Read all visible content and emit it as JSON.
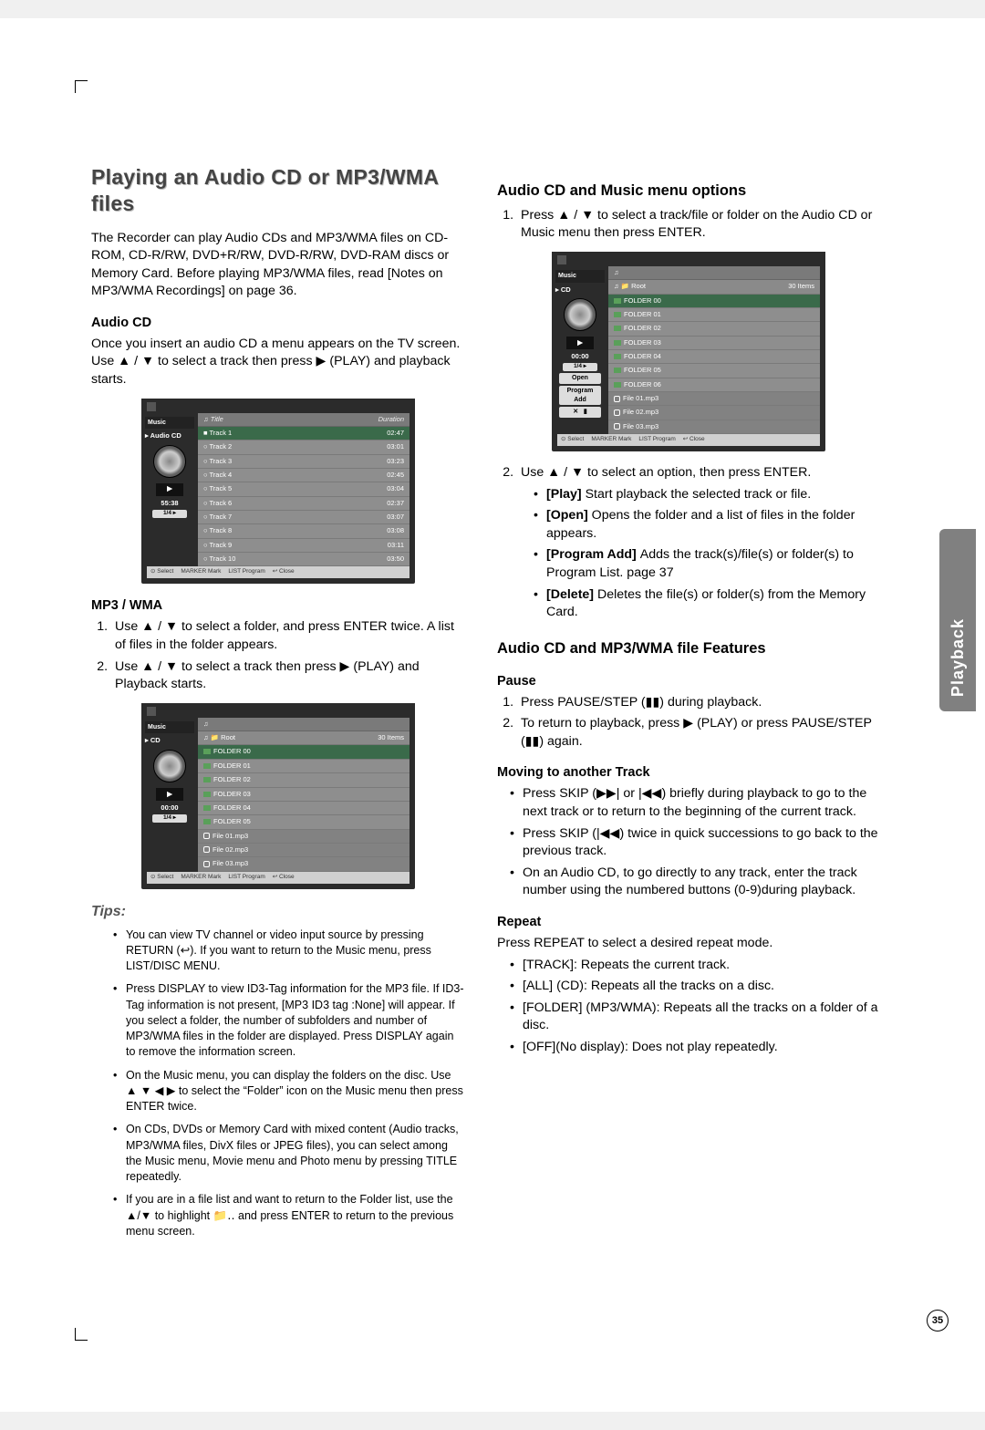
{
  "sideTab": "Playback",
  "pageNumber": "35",
  "left": {
    "h1": "Playing an Audio CD or MP3/WMA files",
    "intro": "The Recorder can play Audio CDs and MP3/WMA files on CD-ROM, CD-R/RW, DVD+R/RW, DVD-R/RW, DVD-RAM discs or Memory Card. Before playing MP3/WMA files, read [Notes on MP3/WMA Recordings] on page 36.",
    "audioCdHead": "Audio CD",
    "audioCdText": "Once you insert an audio CD a menu appears on the TV screen. Use ▲ / ▼ to select a track then press ▶ (PLAY) and playback starts.",
    "mp3Head": "MP3 / WMA",
    "mp3Steps": [
      "Use ▲ / ▼ to select a folder, and press ENTER twice. A list of files in the folder appears.",
      "Use ▲ / ▼ to select a track then press ▶ (PLAY) and Playback starts."
    ],
    "tipsHead": "Tips:",
    "tips": [
      "You can view TV channel or video input source by pressing RETURN (↩). If you want to return to the Music menu, press LIST/DISC MENU.",
      "Press DISPLAY to view ID3-Tag information for the MP3 file. If ID3-Tag information is not present, [MP3 ID3 tag :None] will appear. If you select a folder, the number of subfolders and number of MP3/WMA files in the folder are displayed. Press DISPLAY again to remove the information screen.",
      "On the Music menu, you can display the folders on the disc. Use ▲ ▼ ◀ ▶ to select the “Folder” icon on the Music menu then press ENTER twice.",
      "On CDs, DVDs or Memory Card with mixed content (Audio tracks, MP3/WMA files, DivX files or JPEG files), you can select among the Music menu, Movie menu and Photo menu by pressing TITLE repeatedly.",
      "If you are in a file list and want to return to the Folder list, use the ▲/▼ to highlight 📁‥ and press ENTER to return to the previous menu screen."
    ]
  },
  "right": {
    "h2a": "Audio CD and Music menu options",
    "step1": "Press ▲ / ▼ to select a track/file or folder on the Audio CD or Music menu then press ENTER.",
    "step2": "Use ▲ / ▼ to select an option, then press ENTER.",
    "opts": {
      "play": "Start playback the selected track or file.",
      "open": "Opens the folder and a list of files in the folder appears.",
      "prog": "Adds the track(s)/file(s) or folder(s) to Program List. page 37",
      "del": "Deletes the file(s) or folder(s) from the Memory Card."
    },
    "h2b": "Audio CD and MP3/WMA file Features",
    "pauseHead": "Pause",
    "pause": [
      "Press PAUSE/STEP (▮▮) during playback.",
      "To return to playback, press ▶ (PLAY) or press PAUSE/STEP (▮▮) again."
    ],
    "moveHead": "Moving to another Track",
    "move": [
      "Press SKIP (▶▶| or |◀◀) briefly during playback to go to the next track or to return to the beginning of the current track.",
      "Press SKIP (|◀◀) twice in quick successions to go back to the previous track.",
      "On an Audio CD, to go directly to any track, enter the track number using the numbered buttons (0-9)during playback."
    ],
    "repeatHead": "Repeat",
    "repeatIntro": "Press REPEAT to select a desired repeat mode.",
    "repeat": [
      "[TRACK]: Repeats the current track.",
      "[ALL] (CD): Repeats all the tracks on a disc.",
      "[FOLDER] (MP3/WMA): Repeats all the tracks on a folder of a disc.",
      "[OFF](No display): Does not play repeatedly."
    ]
  },
  "shot1": {
    "title": "Music",
    "sideLabel": "▸ Audio CD",
    "time": "55:38",
    "badge": "1/4 ▸",
    "listHead": [
      "Title",
      "Duration"
    ],
    "rows": [
      [
        "Track 1",
        "02:47"
      ],
      [
        "Track 2",
        "03:01"
      ],
      [
        "Track 3",
        "03:23"
      ],
      [
        "Track 4",
        "02:45"
      ],
      [
        "Track 5",
        "03:04"
      ],
      [
        "Track 6",
        "02:37"
      ],
      [
        "Track 7",
        "03:07"
      ],
      [
        "Track 8",
        "03:08"
      ],
      [
        "Track 9",
        "03:11"
      ],
      [
        "Track 10",
        "03:50"
      ]
    ],
    "foot": [
      "⊙ Select",
      "MARKER Mark",
      "LIST Program",
      "↩ Close"
    ]
  },
  "shot2": {
    "title": "Music",
    "sideLabel": "▸ CD",
    "time": "00:00",
    "badge": "1/4 ▸",
    "rootLabel": "Root",
    "rootCount": "30 Items",
    "rows": [
      "FOLDER 00",
      "FOLDER 01",
      "FOLDER 02",
      "FOLDER 03",
      "FOLDER 04",
      "FOLDER 05",
      "File 01.mp3",
      "File 02.mp3",
      "File 03.mp3"
    ],
    "foot": [
      "⊙ Select",
      "MARKER Mark",
      "LIST Program",
      "↩ Close"
    ]
  },
  "shot3": {
    "title": "Music",
    "sideLabel": "▸ CD",
    "time": "00:00",
    "badge": "1/4 ▸",
    "rootLabel": "Root",
    "rootCount": "30 Items",
    "btnOpen": "Open",
    "btnProg": "Program Add",
    "rows": [
      "FOLDER 00",
      "FOLDER 01",
      "FOLDER 02",
      "FOLDER 03",
      "FOLDER 04",
      "FOLDER 05",
      "FOLDER 06",
      "File 01.mp3",
      "File 02.mp3",
      "File 03.mp3"
    ],
    "foot": [
      "⊙ Select",
      "MARKER Mark",
      "LIST Program",
      "↩ Close"
    ]
  }
}
